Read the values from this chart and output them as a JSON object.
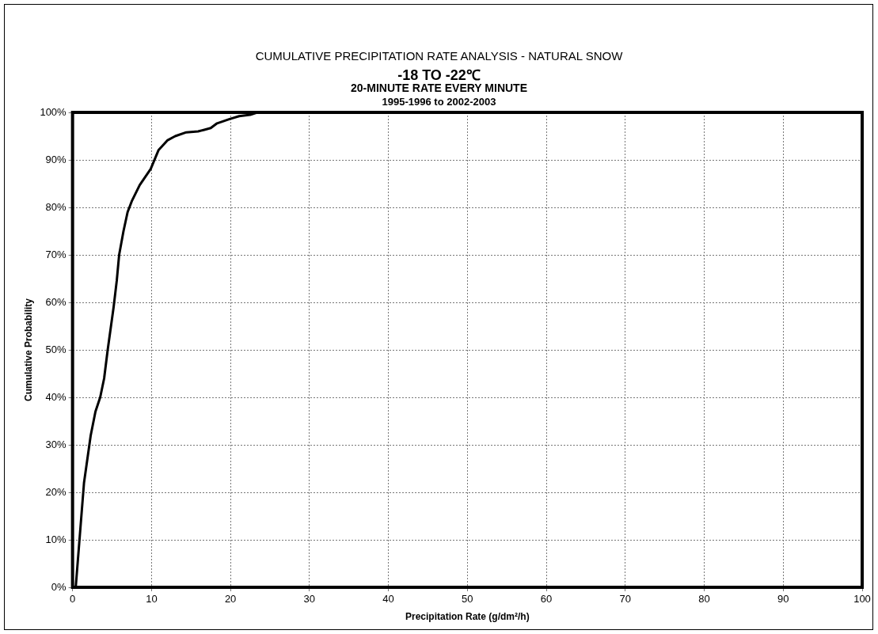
{
  "chart_data": {
    "type": "line",
    "title": "CUMULATIVE PRECIPITATION RATE ANALYSIS - NATURAL SNOW",
    "subtitle": "-18 TO -22℃",
    "annotations": [
      "20-MINUTE RATE EVERY MINUTE",
      "1995-1996 to 2002-2003"
    ],
    "xlabel": "Precipitation Rate (g/dm²/h)",
    "ylabel": "Cumulative Probability",
    "x": [
      0.4,
      1.45,
      2.3,
      2.9,
      3.5,
      4.0,
      4.45,
      5.2,
      5.6,
      5.9,
      6.45,
      6.97,
      7.5,
      8.5,
      9.2,
      9.9,
      10.9,
      12.0,
      13.0,
      14.4,
      15.9,
      16.6,
      17.5,
      18.3,
      19.9,
      21.1,
      22.5,
      23.4
    ],
    "series": [
      {
        "color": "#000000",
        "values": [
          0,
          22,
          32,
          37,
          40,
          44,
          50,
          59,
          64.6,
          70,
          75,
          79,
          81.3,
          84.7,
          86.4,
          88.1,
          92.1,
          94.1,
          95,
          95.8,
          96,
          96.3,
          96.7,
          97.7,
          98.6,
          99.2,
          99.5,
          100
        ]
      }
    ],
    "xlim": [
      0,
      100
    ],
    "xticks": [
      0,
      10,
      20,
      30,
      40,
      50,
      60,
      70,
      80,
      90,
      100
    ],
    "ylim": [
      0,
      100
    ],
    "yticks": [
      {
        "value": 0,
        "label": "0%"
      },
      {
        "value": 10,
        "label": "10%"
      },
      {
        "value": 20,
        "label": "20%"
      },
      {
        "value": 30,
        "label": "30%"
      },
      {
        "value": 40,
        "label": "40%"
      },
      {
        "value": 50,
        "label": "50%"
      },
      {
        "value": 60,
        "label": "60%"
      },
      {
        "value": 70,
        "label": "70%"
      },
      {
        "value": 80,
        "label": "80%"
      },
      {
        "value": 90,
        "label": "90%"
      },
      {
        "value": 100,
        "label": "100%"
      }
    ],
    "grid": true,
    "legend": false,
    "marker": "none",
    "line_style": "solid"
  }
}
